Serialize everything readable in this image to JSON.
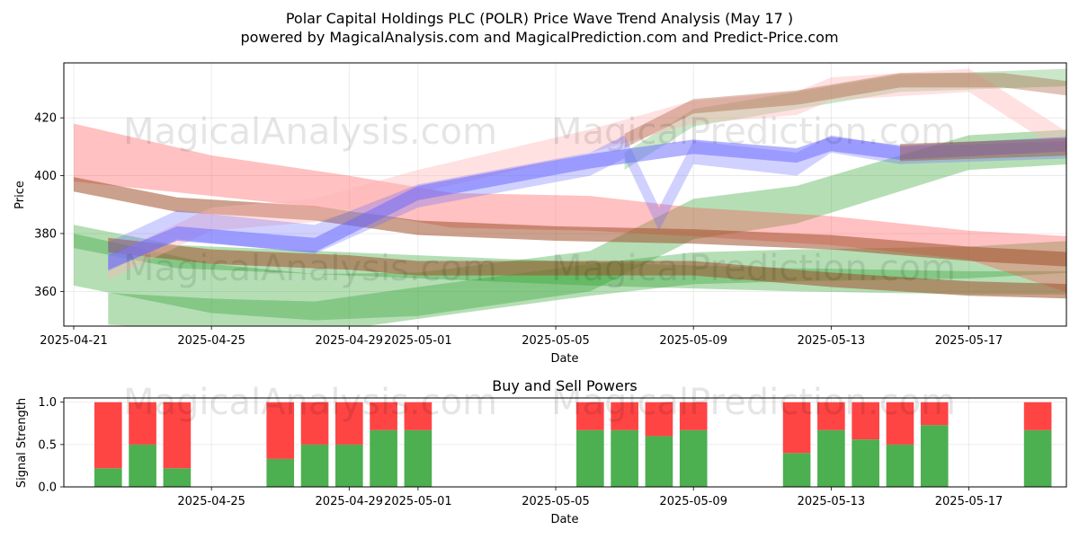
{
  "title_line1": "Polar Capital Holdings PLC (POLR) Price Wave Trend Analysis (May 17 )",
  "title_line2": "powered by MagicalAnalysis.com and MagicalPrediction.com and Predict-Price.com",
  "watermarks": [
    "MagicalAnalysis.com",
    "MagicalPrediction.com"
  ],
  "colors": {
    "green": "#2ca02c",
    "red": "#ff4d4d",
    "blue": "#6666ff",
    "brown": "#a0522d",
    "pink": "#ffb3b3",
    "buy": "#4caf50",
    "sell": "#ff4444"
  },
  "chart_data": [
    {
      "type": "area",
      "xlabel": "Date",
      "ylabel": "Price",
      "xlim": [
        "2025-04-20",
        "2025-05-20"
      ],
      "ylim": [
        348,
        439
      ],
      "x_ticks": [
        "2025-04-21",
        "2025-04-25",
        "2025-04-29",
        "2025-05-01",
        "2025-05-05",
        "2025-05-09",
        "2025-05-13",
        "2025-05-17"
      ],
      "y_ticks": [
        360,
        380,
        400,
        420
      ],
      "grid": true,
      "bands": [
        {
          "color": "green",
          "opacity": 0.35,
          "x": [
            "2025-04-21",
            "2025-04-25",
            "2025-04-28",
            "2025-05-01",
            "2025-05-06",
            "2025-05-09",
            "2025-05-12",
            "2025-05-17",
            "2025-05-20"
          ],
          "center": [
            371,
            361,
            358,
            359,
            367,
            385,
            390,
            408,
            410
          ],
          "width": [
            18,
            17,
            16,
            15,
            14,
            14,
            13,
            12,
            12
          ]
        },
        {
          "color": "green",
          "opacity": 0.35,
          "x": [
            "2025-04-21",
            "2025-04-24",
            "2025-04-28",
            "2025-05-02",
            "2025-05-06",
            "2025-05-09",
            "2025-05-12",
            "2025-05-17",
            "2025-05-20"
          ],
          "center": [
            379,
            372,
            370,
            368,
            366,
            365,
            364,
            363,
            363
          ],
          "width": [
            8,
            8,
            8,
            8,
            8,
            8,
            8,
            8,
            8
          ]
        },
        {
          "color": "green",
          "opacity": 0.35,
          "x": [
            "2025-04-22",
            "2025-04-25",
            "2025-04-28",
            "2025-05-01",
            "2025-05-06",
            "2025-05-09",
            "2025-05-12",
            "2025-05-17",
            "2025-05-20"
          ],
          "center": [
            354,
            352,
            351,
            356,
            364,
            368,
            369,
            370,
            372
          ],
          "width": [
            11,
            11,
            11,
            11,
            11,
            11,
            11,
            11,
            11
          ]
        },
        {
          "color": "green",
          "opacity": 0.25,
          "x": [
            "2025-05-07",
            "2025-05-09",
            "2025-05-12",
            "2025-05-15",
            "2025-05-20"
          ],
          "center": [
            405,
            420,
            426,
            432,
            434
          ],
          "width": [
            6,
            6,
            6,
            6,
            6
          ]
        },
        {
          "color": "red",
          "opacity": 0.35,
          "x": [
            "2025-04-21",
            "2025-04-25",
            "2025-04-29",
            "2025-05-02",
            "2025-05-06",
            "2025-05-09",
            "2025-05-13",
            "2025-05-17",
            "2025-05-20"
          ],
          "center": [
            408,
            400,
            394,
            388,
            387,
            384,
            381,
            376,
            369
          ],
          "width": [
            20,
            14,
            12,
            12,
            12,
            10,
            10,
            10,
            20
          ]
        },
        {
          "color": "brown",
          "opacity": 0.55,
          "x": [
            "2025-04-21",
            "2025-04-24",
            "2025-04-28",
            "2025-05-01",
            "2025-05-05",
            "2025-05-09",
            "2025-05-13",
            "2025-05-17",
            "2025-05-20"
          ],
          "center": [
            397,
            390,
            387,
            382,
            380,
            379,
            377,
            373,
            371
          ],
          "width": [
            5,
            5,
            5,
            5,
            5,
            5,
            5,
            5,
            5
          ]
        },
        {
          "color": "brown",
          "opacity": 0.55,
          "x": [
            "2025-04-22",
            "2025-04-25",
            "2025-04-29",
            "2025-05-01",
            "2025-05-06",
            "2025-05-09",
            "2025-05-13",
            "2025-05-17",
            "2025-05-20"
          ],
          "center": [
            376,
            372,
            370,
            368,
            368,
            368,
            364,
            361,
            360
          ],
          "width": [
            5,
            5,
            5,
            5,
            5,
            5,
            5,
            5,
            5
          ]
        },
        {
          "color": "pink",
          "opacity": 0.4,
          "x": [
            "2025-04-22",
            "2025-04-25",
            "2025-04-28",
            "2025-05-01",
            "2025-05-06",
            "2025-05-09",
            "2025-05-12",
            "2025-05-13",
            "2025-05-17",
            "2025-05-20"
          ],
          "center": [
            368,
            385,
            388,
            398,
            412,
            422,
            425,
            430,
            433,
            410
          ],
          "width": [
            8,
            8,
            8,
            8,
            8,
            8,
            8,
            8,
            8,
            8
          ]
        },
        {
          "color": "brown",
          "opacity": 0.35,
          "x": [
            "2025-05-07",
            "2025-05-09",
            "2025-05-12",
            "2025-05-15",
            "2025-05-18",
            "2025-05-20"
          ],
          "center": [
            412,
            424,
            427,
            433,
            433,
            430
          ],
          "width": [
            5,
            5,
            5,
            5,
            5,
            5
          ]
        },
        {
          "color": "blue",
          "opacity": 0.3,
          "x": [
            "2025-04-22",
            "2025-04-24",
            "2025-04-28",
            "2025-05-01",
            "2025-05-06",
            "2025-05-07",
            "2025-05-08",
            "2025-05-09",
            "2025-05-12",
            "2025-05-13",
            "2025-05-15",
            "2025-05-20"
          ],
          "center": [
            372,
            383,
            378,
            393,
            404,
            410,
            385,
            408,
            404,
            411,
            407,
            409
          ],
          "width": [
            10,
            10,
            10,
            8,
            8,
            8,
            8,
            8,
            8,
            6,
            6,
            6
          ]
        },
        {
          "color": "blue",
          "opacity": 0.5,
          "x": [
            "2025-04-22",
            "2025-04-24",
            "2025-04-28",
            "2025-05-01",
            "2025-05-06",
            "2025-05-09",
            "2025-05-12",
            "2025-05-13",
            "2025-05-15",
            "2025-05-20"
          ],
          "center": [
            370,
            380,
            376,
            394,
            405,
            410,
            407,
            411,
            408,
            411
          ],
          "width": [
            5,
            5,
            5,
            5,
            5,
            5,
            5,
            5,
            5,
            5
          ]
        },
        {
          "color": "brown",
          "opacity": 0.45,
          "x": [
            "2025-05-15",
            "2025-05-20"
          ],
          "center": [
            408,
            410
          ],
          "width": [
            6,
            6
          ]
        }
      ]
    },
    {
      "type": "bar",
      "title": "Buy and Sell Powers",
      "xlabel": "Date",
      "ylabel": "Signal Strength",
      "xlim": [
        "2025-04-20",
        "2025-05-20"
      ],
      "ylim": [
        0,
        1.05
      ],
      "x_ticks": [
        "2025-04-25",
        "2025-04-29",
        "2025-05-01",
        "2025-05-05",
        "2025-05-09",
        "2025-05-13",
        "2025-05-17"
      ],
      "y_ticks": [
        "0.0",
        "0.5",
        "1.0"
      ],
      "dates": [
        "2025-04-22",
        "2025-04-23",
        "2025-04-24",
        "2025-04-27",
        "2025-04-28",
        "2025-04-29",
        "2025-04-30",
        "2025-05-01",
        "2025-05-06",
        "2025-05-07",
        "2025-05-08",
        "2025-05-09",
        "2025-05-12",
        "2025-05-13",
        "2025-05-14",
        "2025-05-15",
        "2025-05-16",
        "2025-05-19"
      ],
      "series": [
        {
          "name": "buy",
          "color": "buy",
          "values": [
            0.22,
            0.5,
            0.22,
            0.33,
            0.5,
            0.5,
            0.67,
            0.67,
            0.67,
            0.67,
            0.6,
            0.67,
            0.4,
            0.67,
            0.56,
            0.5,
            0.73,
            0.67
          ]
        },
        {
          "name": "sell",
          "color": "sell",
          "values": [
            0.78,
            0.5,
            0.78,
            0.67,
            0.5,
            0.5,
            0.33,
            0.33,
            0.33,
            0.33,
            0.4,
            0.33,
            0.6,
            0.33,
            0.44,
            0.5,
            0.27,
            0.33
          ]
        }
      ]
    }
  ]
}
